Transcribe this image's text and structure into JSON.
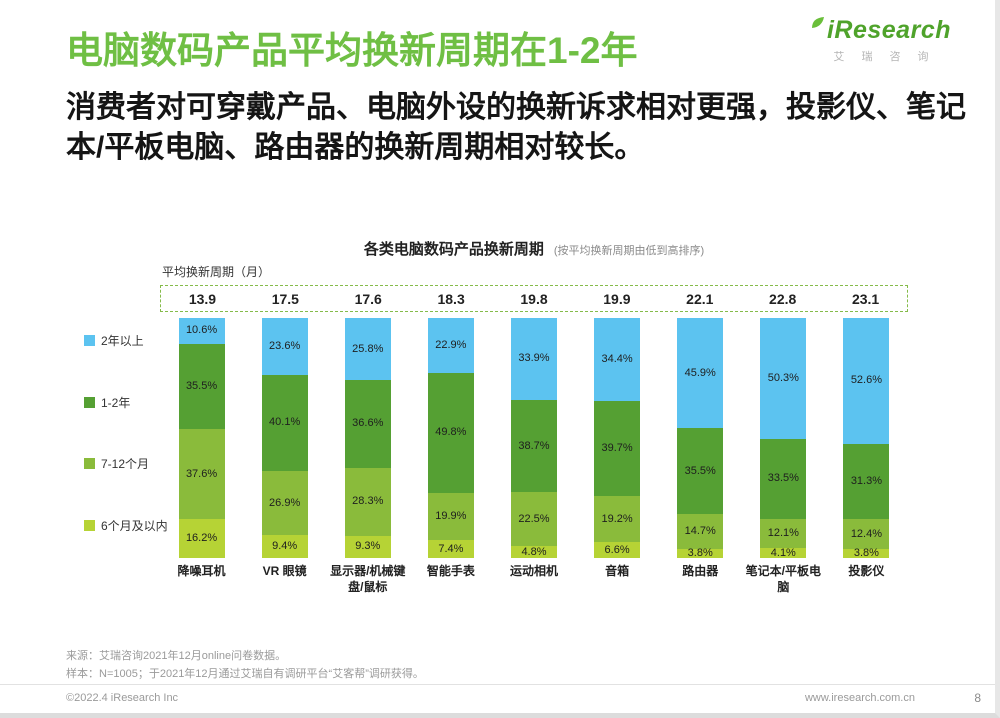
{
  "page": {
    "title": "电脑数码产品平均换新周期在1-2年",
    "subtitle": "消费者对可穿戴产品、电脑外设的换新诉求相对更强，投影仪、笔记本/平板电脑、路由器的换新周期相对较长。",
    "logo": {
      "brand": "iResearch",
      "brand_cn": "艾 瑞 咨 询"
    },
    "footer": {
      "source": "来源：艾瑞咨询2021年12月online问卷数据。",
      "sample": "样本：N=1005；于2021年12月通过艾瑞自有调研平台“艾客帮”调研获得。",
      "copyright": "©2022.4 iResearch Inc",
      "site": "www.iresearch.com.cn",
      "page_number": "8"
    }
  },
  "chart_data": {
    "type": "bar",
    "stacked": true,
    "title": "各类电脑数码产品换新周期",
    "subtitle": "(按平均换新周期由低到高排序)",
    "axis_label": "平均换新周期（月）",
    "ylim": [
      0,
      100
    ],
    "grid": false,
    "legend_position": "left",
    "categories": [
      "降噪耳机",
      "VR 眼镜",
      "显示器/机械键盘/鼠标",
      "智能手表",
      "运动相机",
      "音箱",
      "路由器",
      "笔记本/平板电脑",
      "投影仪"
    ],
    "averages": [
      13.9,
      17.5,
      17.6,
      18.3,
      19.8,
      19.9,
      22.1,
      22.8,
      23.1
    ],
    "series": [
      {
        "key": "within-6-months",
        "name": "6个月及以内",
        "color": "#b6d335",
        "values": [
          16.2,
          9.4,
          9.3,
          7.4,
          4.8,
          6.6,
          3.8,
          4.1,
          3.8
        ]
      },
      {
        "key": "7-12-months",
        "name": "7-12个月",
        "color": "#8abb3b",
        "values": [
          37.6,
          26.9,
          28.3,
          19.9,
          22.5,
          19.2,
          14.7,
          12.1,
          12.4
        ]
      },
      {
        "key": "1-2-years",
        "name": "1-2年",
        "color": "#55a033",
        "values": [
          35.5,
          40.1,
          36.6,
          49.8,
          38.7,
          39.7,
          35.5,
          33.5,
          31.3
        ]
      },
      {
        "key": "over-2-years",
        "name": "2年以上",
        "color": "#5cc3f0",
        "values": [
          10.6,
          23.6,
          25.8,
          22.9,
          33.9,
          34.4,
          45.9,
          50.3,
          52.6
        ]
      }
    ],
    "legend": [
      {
        "label": "2年以上",
        "color": "#5cc3f0"
      },
      {
        "label": "1-2年",
        "color": "#55a033"
      },
      {
        "label": "7-12个月",
        "color": "#8abb3b"
      },
      {
        "label": "6个月及以内",
        "color": "#b6d335"
      }
    ]
  }
}
